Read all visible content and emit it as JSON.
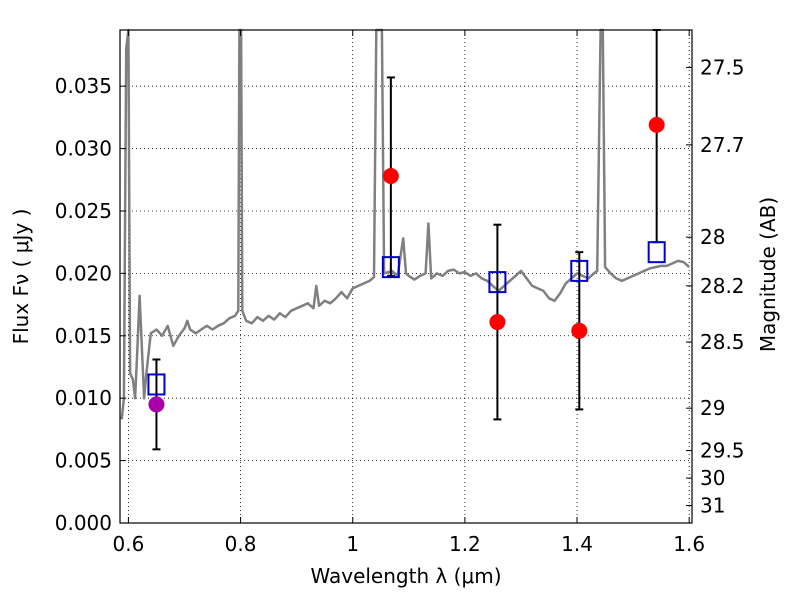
{
  "chart_data": {
    "type": "line",
    "xlabel": "Wavelength  λ (μm)",
    "ylabel": "Flux  Fν  ( μJy )",
    "ylabel_right": "Magnitude (AB)",
    "xlim": [
      0.585,
      1.605
    ],
    "ylim": [
      0.0,
      0.0395
    ],
    "grid": true,
    "x_ticks": [
      {
        "value": 0.6,
        "label": "0.6"
      },
      {
        "value": 0.8,
        "label": "0.8"
      },
      {
        "value": 1.0,
        "label": "1"
      },
      {
        "value": 1.2,
        "label": "1.2"
      },
      {
        "value": 1.4,
        "label": "1.4"
      },
      {
        "value": 1.6,
        "label": "1.6"
      }
    ],
    "y_ticks": [
      {
        "value": 0.0,
        "label": "0.000"
      },
      {
        "value": 0.005,
        "label": "0.005"
      },
      {
        "value": 0.01,
        "label": "0.010"
      },
      {
        "value": 0.015,
        "label": "0.015"
      },
      {
        "value": 0.02,
        "label": "0.020"
      },
      {
        "value": 0.025,
        "label": "0.025"
      },
      {
        "value": 0.03,
        "label": "0.030"
      },
      {
        "value": 0.035,
        "label": "0.035"
      }
    ],
    "right_ticks": [
      {
        "flux": 0.0365,
        "label": "27.5"
      },
      {
        "flux": 0.0303,
        "label": "27.7"
      },
      {
        "flux": 0.0229,
        "label": "28"
      },
      {
        "flux": 0.019,
        "label": "28.2"
      },
      {
        "flux": 0.0145,
        "label": "28.5"
      },
      {
        "flux": 0.0092,
        "label": "29"
      },
      {
        "flux": 0.0058,
        "label": "29.5"
      },
      {
        "flux": 0.0036,
        "label": "30"
      },
      {
        "flux": 0.0014,
        "label": "31"
      }
    ],
    "colors": {
      "model": "#808080",
      "observed": "#ff0000",
      "observed_special": "#aa00aa",
      "synthetic": "#0000cc",
      "errorbar": "#000000"
    },
    "model_spectrum": [
      [
        0.588,
        0.0083
      ],
      [
        0.592,
        0.01
      ],
      [
        0.596,
        0.038
      ],
      [
        0.6,
        0.0395
      ],
      [
        0.603,
        0.012
      ],
      [
        0.608,
        0.0115
      ],
      [
        0.612,
        0.01
      ],
      [
        0.616,
        0.014
      ],
      [
        0.62,
        0.0182
      ],
      [
        0.624,
        0.014
      ],
      [
        0.628,
        0.01
      ],
      [
        0.632,
        0.012
      ],
      [
        0.64,
        0.0152
      ],
      [
        0.65,
        0.0155
      ],
      [
        0.66,
        0.015
      ],
      [
        0.67,
        0.0158
      ],
      [
        0.675,
        0.015
      ],
      [
        0.68,
        0.0142
      ],
      [
        0.69,
        0.015
      ],
      [
        0.7,
        0.0156
      ],
      [
        0.705,
        0.0162
      ],
      [
        0.71,
        0.0155
      ],
      [
        0.72,
        0.0152
      ],
      [
        0.73,
        0.0155
      ],
      [
        0.74,
        0.0158
      ],
      [
        0.75,
        0.0155
      ],
      [
        0.76,
        0.0158
      ],
      [
        0.77,
        0.016
      ],
      [
        0.78,
        0.0164
      ],
      [
        0.79,
        0.0166
      ],
      [
        0.796,
        0.017
      ],
      [
        0.798,
        0.0395
      ],
      [
        0.801,
        0.0395
      ],
      [
        0.803,
        0.017
      ],
      [
        0.81,
        0.0162
      ],
      [
        0.82,
        0.016
      ],
      [
        0.83,
        0.0165
      ],
      [
        0.84,
        0.0162
      ],
      [
        0.85,
        0.0166
      ],
      [
        0.86,
        0.0163
      ],
      [
        0.87,
        0.0168
      ],
      [
        0.88,
        0.0165
      ],
      [
        0.89,
        0.017
      ],
      [
        0.9,
        0.0172
      ],
      [
        0.91,
        0.0174
      ],
      [
        0.92,
        0.0176
      ],
      [
        0.93,
        0.0172
      ],
      [
        0.935,
        0.019
      ],
      [
        0.94,
        0.0174
      ],
      [
        0.95,
        0.0178
      ],
      [
        0.96,
        0.0176
      ],
      [
        0.97,
        0.018
      ],
      [
        0.98,
        0.0185
      ],
      [
        0.99,
        0.018
      ],
      [
        1.0,
        0.0188
      ],
      [
        1.01,
        0.019
      ],
      [
        1.02,
        0.0192
      ],
      [
        1.03,
        0.0194
      ],
      [
        1.038,
        0.0197
      ],
      [
        1.042,
        0.0395
      ],
      [
        1.052,
        0.0395
      ],
      [
        1.056,
        0.02
      ],
      [
        1.07,
        0.0202
      ],
      [
        1.08,
        0.0198
      ],
      [
        1.09,
        0.0228
      ],
      [
        1.095,
        0.02
      ],
      [
        1.1,
        0.0198
      ],
      [
        1.11,
        0.0195
      ],
      [
        1.12,
        0.0198
      ],
      [
        1.13,
        0.02
      ],
      [
        1.135,
        0.024
      ],
      [
        1.14,
        0.0196
      ],
      [
        1.15,
        0.02
      ],
      [
        1.16,
        0.0198
      ],
      [
        1.17,
        0.0202
      ],
      [
        1.18,
        0.0203
      ],
      [
        1.19,
        0.02
      ],
      [
        1.2,
        0.0201
      ],
      [
        1.21,
        0.0198
      ],
      [
        1.22,
        0.02
      ],
      [
        1.23,
        0.0196
      ],
      [
        1.24,
        0.0194
      ],
      [
        1.25,
        0.019
      ],
      [
        1.26,
        0.0186
      ],
      [
        1.27,
        0.019
      ],
      [
        1.28,
        0.0194
      ],
      [
        1.29,
        0.0198
      ],
      [
        1.3,
        0.0202
      ],
      [
        1.31,
        0.0196
      ],
      [
        1.32,
        0.019
      ],
      [
        1.33,
        0.0188
      ],
      [
        1.34,
        0.0186
      ],
      [
        1.35,
        0.018
      ],
      [
        1.36,
        0.0178
      ],
      [
        1.37,
        0.0184
      ],
      [
        1.38,
        0.0192
      ],
      [
        1.39,
        0.0196
      ],
      [
        1.4,
        0.02
      ],
      [
        1.41,
        0.0198
      ],
      [
        1.42,
        0.0196
      ],
      [
        1.43,
        0.02
      ],
      [
        1.436,
        0.0202
      ],
      [
        1.442,
        0.0395
      ],
      [
        1.446,
        0.0395
      ],
      [
        1.45,
        0.0205
      ],
      [
        1.46,
        0.02
      ],
      [
        1.47,
        0.0196
      ],
      [
        1.48,
        0.0194
      ],
      [
        1.49,
        0.0196
      ],
      [
        1.5,
        0.0198
      ],
      [
        1.51,
        0.02
      ],
      [
        1.52,
        0.0202
      ],
      [
        1.53,
        0.0204
      ],
      [
        1.54,
        0.0205
      ],
      [
        1.55,
        0.0206
      ],
      [
        1.56,
        0.0206
      ],
      [
        1.57,
        0.0208
      ],
      [
        1.58,
        0.021
      ],
      [
        1.59,
        0.0209
      ],
      [
        1.6,
        0.0205
      ]
    ],
    "observed": [
      {
        "x": 0.65,
        "y": 0.0095,
        "yerr_low": 0.0059,
        "yerr_high": 0.0131,
        "special": true
      },
      {
        "x": 1.068,
        "y": 0.0278,
        "yerr_low": 0.0198,
        "yerr_high": 0.0357,
        "special": false
      },
      {
        "x": 1.258,
        "y": 0.0161,
        "yerr_low": 0.0083,
        "yerr_high": 0.0239,
        "special": false
      },
      {
        "x": 1.404,
        "y": 0.0154,
        "yerr_low": 0.0091,
        "yerr_high": 0.0217,
        "special": false
      },
      {
        "x": 1.542,
        "y": 0.0319,
        "yerr_low": 0.0225,
        "yerr_high": 0.0395,
        "special": false
      }
    ],
    "synthetic": [
      {
        "x": 0.65,
        "y": 0.0111
      },
      {
        "x": 1.068,
        "y": 0.0205
      },
      {
        "x": 1.258,
        "y": 0.0193
      },
      {
        "x": 1.404,
        "y": 0.0202
      },
      {
        "x": 1.542,
        "y": 0.0217
      }
    ]
  }
}
